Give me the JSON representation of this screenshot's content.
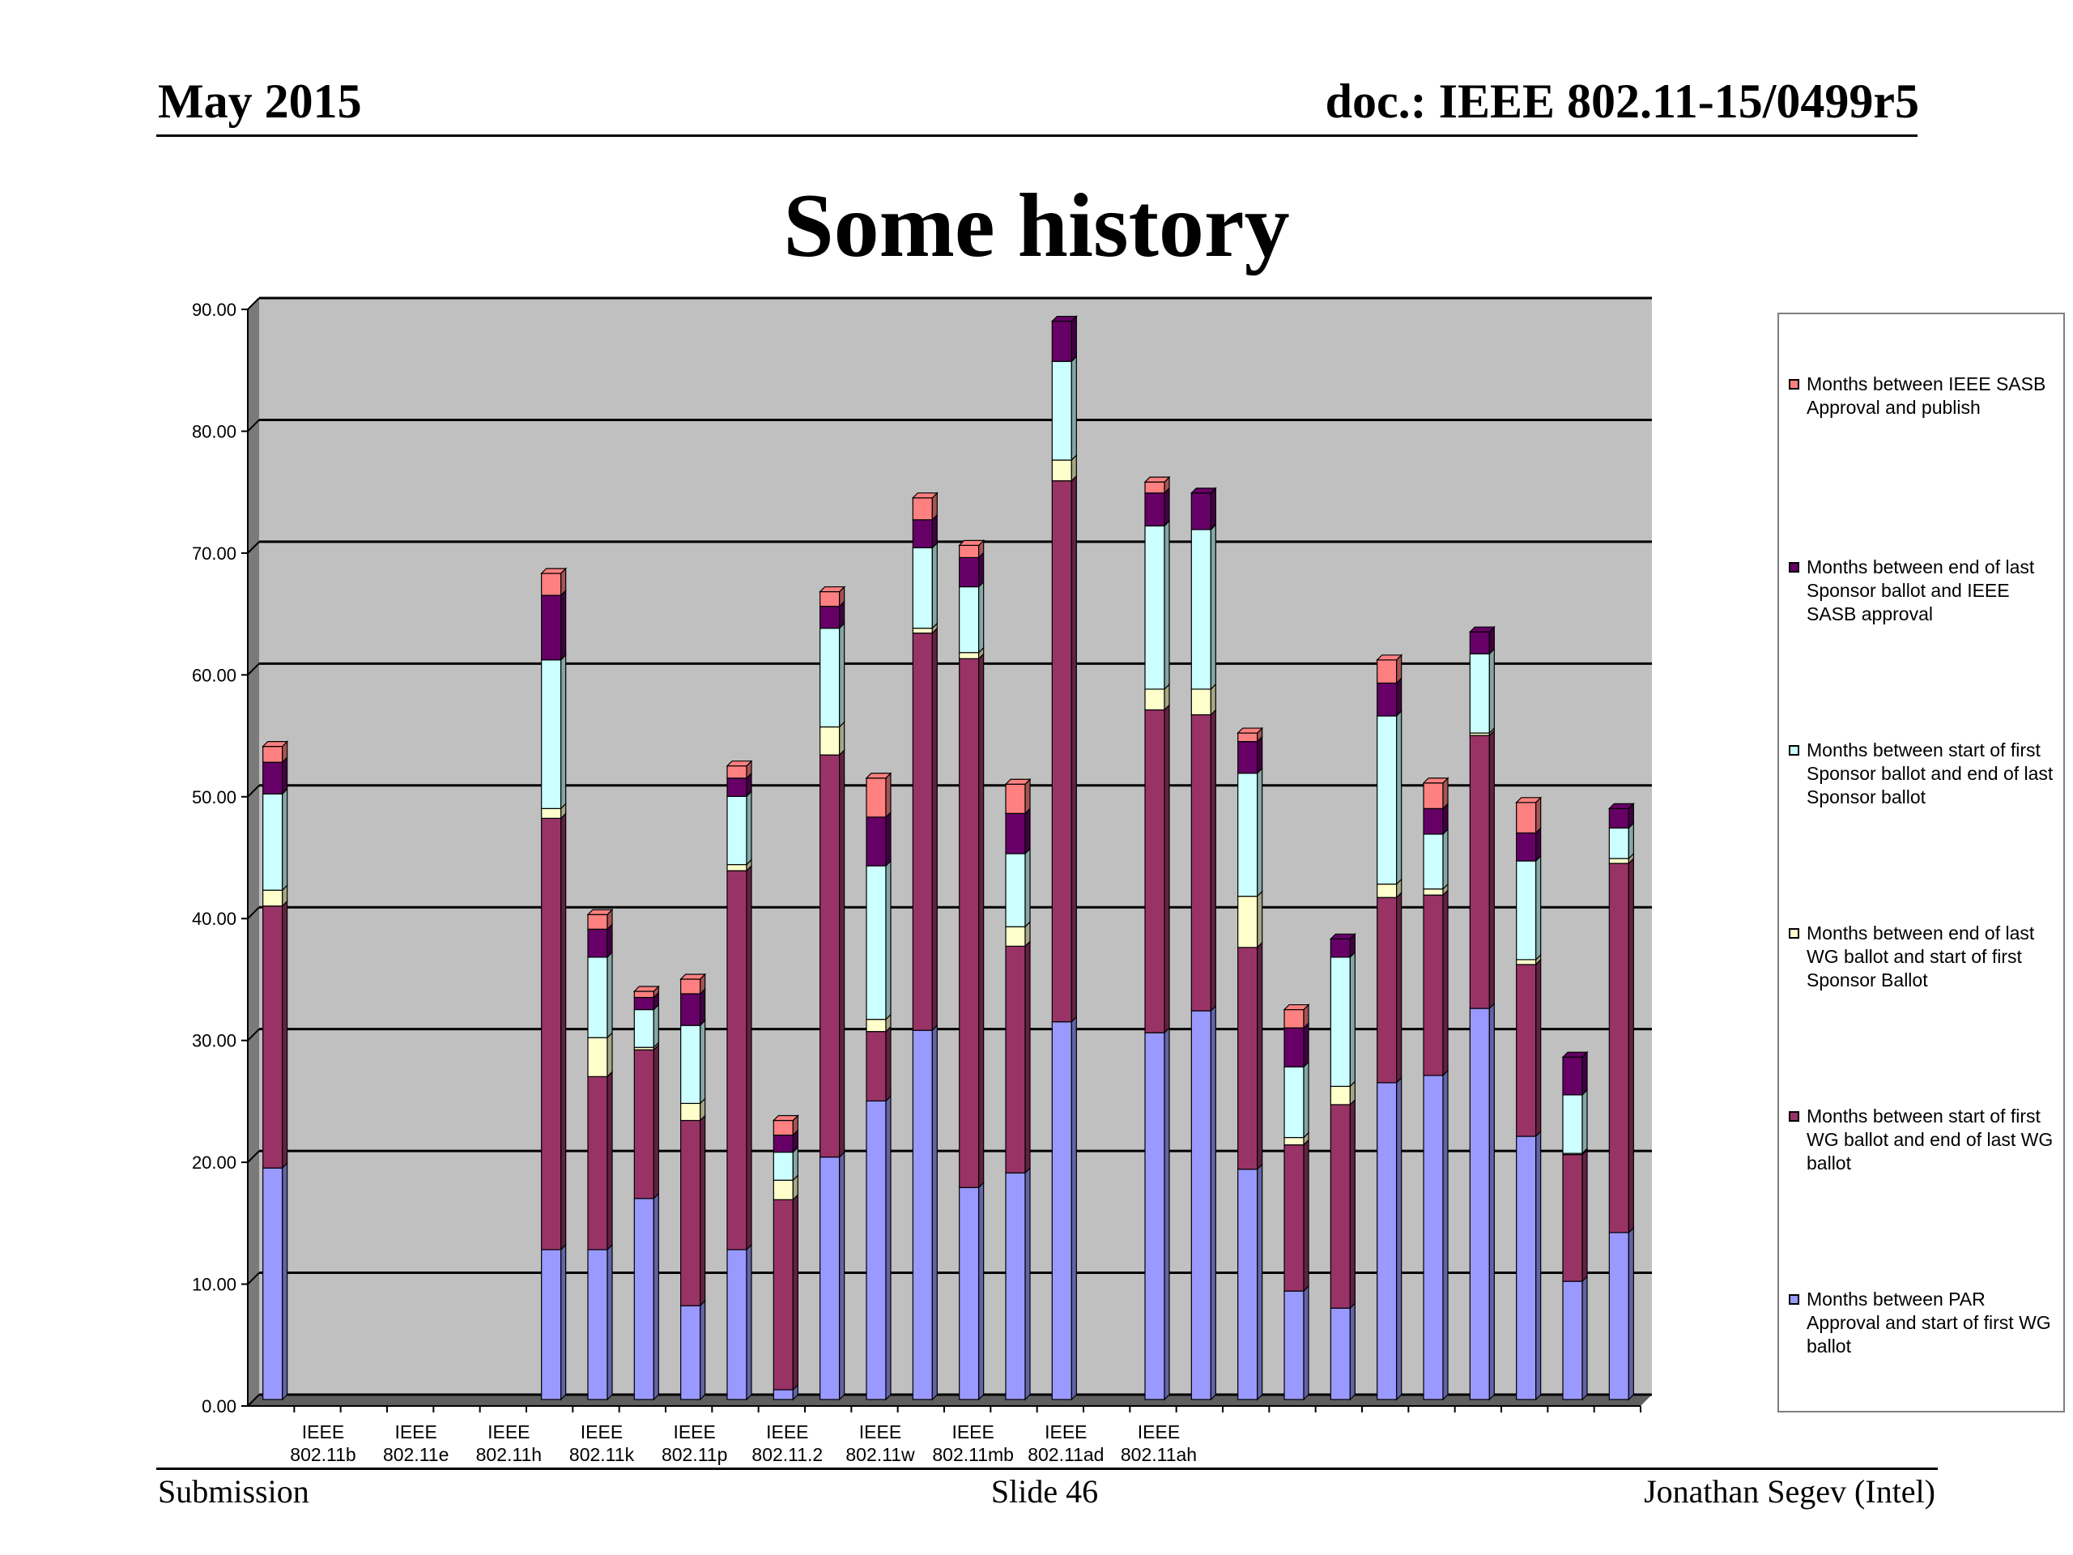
{
  "header": {
    "date": "May 2015",
    "doc": "doc.: IEEE 802.11-15/0499r5"
  },
  "title": "Some history",
  "footer": {
    "left": "Submission",
    "center": "Slide 46",
    "right": "Jonathan Segev (Intel)"
  },
  "chart_data": {
    "type": "bar",
    "stacked": true,
    "ylim": [
      0,
      90
    ],
    "y_ticks": [
      "0.00",
      "10.00",
      "20.00",
      "30.00",
      "40.00",
      "50.00",
      "60.00",
      "70.00",
      "80.00",
      "90.00"
    ],
    "categories": [
      "",
      "IEEE 802.11b",
      "",
      "IEEE 802.11e",
      "",
      "IEEE 802.11h",
      "",
      "IEEE 802.11k",
      "",
      "IEEE 802.11p",
      "",
      "IEEE 802.11.2",
      "",
      "IEEE 802.11w",
      "",
      "IEEE 802.11mb",
      "",
      "IEEE 802.11ad",
      "",
      "IEEE 802.11ah",
      "",
      "",
      "",
      "",
      "",
      "",
      "",
      "",
      "",
      ""
    ],
    "grid": true,
    "legend_position": "right",
    "series": [
      {
        "name": "Months between PAR Approval and start of first WG ballot",
        "color": "#9999ff",
        "values": [
          19,
          null,
          null,
          null,
          null,
          null,
          12.3,
          12.3,
          16.5,
          7.7,
          12.3,
          0.8,
          19.9,
          24.5,
          30.3,
          17.4,
          18.6,
          31,
          null,
          30.1,
          31.9,
          18.9,
          8.9,
          7.5,
          26,
          26.6,
          32.1,
          21.6,
          9.7,
          13.7
        ]
      },
      {
        "name": "Months between start of first WG ballot and end of last WG ballot",
        "color": "#993366",
        "values": [
          21.5,
          null,
          null,
          null,
          null,
          null,
          35.4,
          14.2,
          12.2,
          15.2,
          31.1,
          15.6,
          33,
          5.7,
          32.6,
          43.4,
          18.6,
          44.4,
          null,
          26.5,
          24.3,
          18.2,
          12,
          16.7,
          15.2,
          14.8,
          22.4,
          14.1,
          10.4,
          30.3
        ]
      },
      {
        "name": "Months between end of last WG ballot and start of first Sponsor Ballot",
        "color": "#ffffcc",
        "values": [
          1.3,
          null,
          null,
          null,
          null,
          null,
          0.8,
          3.2,
          0.2,
          1.4,
          0.5,
          1.6,
          2.3,
          1,
          0.4,
          0.5,
          1.6,
          1.7,
          null,
          1.7,
          2.1,
          4.2,
          0.6,
          1.5,
          1.1,
          0.5,
          0.2,
          0.4,
          0.1,
          0.4
        ]
      },
      {
        "name": "Months between start of first Sponsor ballot and end of last Sponsor ballot",
        "color": "#ccffff",
        "values": [
          7.9,
          null,
          null,
          null,
          null,
          null,
          12.2,
          6.6,
          3.1,
          6.4,
          5.6,
          2.3,
          8.1,
          12.6,
          6.6,
          5.4,
          6,
          8.1,
          null,
          13.4,
          13.1,
          10.1,
          5.8,
          10.6,
          13.8,
          4.5,
          6.5,
          8.1,
          4.8,
          2.5
        ]
      },
      {
        "name": "Months between end of last Sponsor ballot and IEEE SASB approval",
        "color": "#660066",
        "values": [
          2.6,
          null,
          null,
          null,
          null,
          null,
          5.3,
          2.3,
          1,
          2.6,
          1.5,
          1.4,
          1.8,
          4,
          2.3,
          2.4,
          3.3,
          3.3,
          null,
          2.7,
          3,
          2.6,
          3.2,
          1.5,
          2.7,
          2.1,
          1.8,
          2.3,
          3.1,
          1.6
        ]
      },
      {
        "name": "Months between IEEE SASB Approval and publish",
        "color": "#ff8080",
        "values": [
          1.3,
          null,
          null,
          null,
          null,
          null,
          1.8,
          1.2,
          0.5,
          1.2,
          1,
          1.2,
          1.2,
          3.2,
          1.8,
          1,
          2.4,
          0,
          null,
          0.9,
          0,
          0.7,
          1.5,
          0,
          1.9,
          2.1,
          0,
          2.5,
          0,
          0
        ]
      }
    ]
  }
}
